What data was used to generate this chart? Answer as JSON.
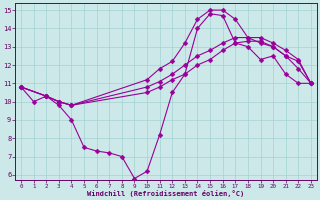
{
  "background_color": "#cce8e8",
  "line_color": "#990099",
  "xlim_min": -0.5,
  "xlim_max": 23.5,
  "ylim_min": 5.7,
  "ylim_max": 15.4,
  "xticks": [
    0,
    1,
    2,
    3,
    4,
    5,
    6,
    7,
    8,
    9,
    10,
    11,
    12,
    13,
    14,
    15,
    16,
    17,
    18,
    19,
    20,
    21,
    22,
    23
  ],
  "yticks": [
    6,
    7,
    8,
    9,
    10,
    11,
    12,
    13,
    14,
    15
  ],
  "xlabel": "Windchill (Refroidissement éolien,°C)",
  "series": [
    {
      "x": [
        0,
        1,
        2,
        3,
        4,
        5,
        6,
        7,
        8,
        9,
        10,
        11,
        12,
        13,
        14,
        15,
        16,
        17,
        18,
        19,
        20,
        21,
        22,
        23
      ],
      "y": [
        10.8,
        10.0,
        10.3,
        9.8,
        9.0,
        7.5,
        7.3,
        7.2,
        7.0,
        5.8,
        6.2,
        8.2,
        10.5,
        11.5,
        14.0,
        14.8,
        14.7,
        13.2,
        13.0,
        12.3,
        12.5,
        11.5,
        11.0,
        11.0
      ]
    },
    {
      "x": [
        0,
        2,
        3,
        4,
        10,
        11,
        12,
        13,
        14,
        15,
        16,
        17,
        18,
        19,
        20,
        21,
        22,
        23
      ],
      "y": [
        10.8,
        10.3,
        10.0,
        9.8,
        10.5,
        10.8,
        11.2,
        11.5,
        12.0,
        12.3,
        12.8,
        13.2,
        13.3,
        13.3,
        13.0,
        12.5,
        12.2,
        11.0
      ]
    },
    {
      "x": [
        0,
        2,
        3,
        4,
        10,
        11,
        12,
        13,
        14,
        15,
        16,
        17,
        18,
        19,
        20,
        21,
        22,
        23
      ],
      "y": [
        10.8,
        10.3,
        10.0,
        9.8,
        10.8,
        11.1,
        11.5,
        12.0,
        12.5,
        12.8,
        13.2,
        13.5,
        13.5,
        13.5,
        13.2,
        12.8,
        12.3,
        11.0
      ]
    },
    {
      "x": [
        0,
        2,
        3,
        4,
        10,
        11,
        12,
        13,
        14,
        15,
        16,
        17,
        18,
        19,
        20,
        21,
        22,
        23
      ],
      "y": [
        10.8,
        10.3,
        10.0,
        9.8,
        11.2,
        11.8,
        12.2,
        13.2,
        14.5,
        15.0,
        15.0,
        14.5,
        13.5,
        13.2,
        13.0,
        12.5,
        11.8,
        11.0
      ]
    }
  ]
}
